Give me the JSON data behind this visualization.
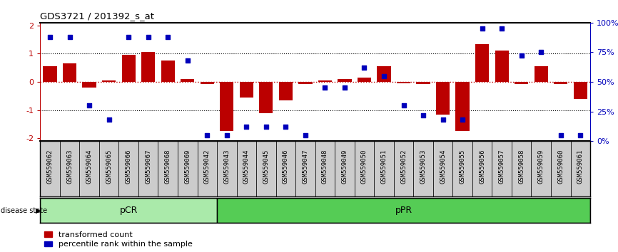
{
  "title": "GDS3721 / 201392_s_at",
  "samples": [
    "GSM559062",
    "GSM559063",
    "GSM559064",
    "GSM559065",
    "GSM559066",
    "GSM559067",
    "GSM559068",
    "GSM559069",
    "GSM559042",
    "GSM559043",
    "GSM559044",
    "GSM559045",
    "GSM559046",
    "GSM559047",
    "GSM559048",
    "GSM559049",
    "GSM559050",
    "GSM559051",
    "GSM559052",
    "GSM559053",
    "GSM559054",
    "GSM559055",
    "GSM559056",
    "GSM559057",
    "GSM559058",
    "GSM559059",
    "GSM559060",
    "GSM559061"
  ],
  "bar_values": [
    0.55,
    0.65,
    -0.2,
    0.05,
    0.97,
    1.05,
    0.75,
    0.1,
    -0.08,
    -1.75,
    -0.55,
    -1.1,
    -0.65,
    -0.08,
    0.05,
    0.1,
    0.15,
    0.55,
    -0.05,
    -0.08,
    -1.15,
    -1.75,
    1.35,
    1.1,
    -0.08,
    0.55,
    -0.08,
    -0.6
  ],
  "percentile_values": [
    88,
    88,
    30,
    18,
    88,
    88,
    88,
    68,
    5,
    5,
    12,
    12,
    12,
    5,
    45,
    45,
    62,
    55,
    30,
    22,
    18,
    18,
    95,
    95,
    72,
    75,
    5,
    5
  ],
  "pcr_count": 9,
  "ppr_count": 19,
  "ylim": [
    -2.1,
    2.1
  ],
  "right_ylim": [
    0,
    100
  ],
  "bar_color": "#bb0000",
  "dot_color": "#0000bb",
  "pcr_color": "#aaeaaa",
  "ppr_color": "#55cc55",
  "axis_left_color": "#bb0000",
  "axis_right_color": "#0000bb",
  "legend_labels": [
    "transformed count",
    "percentile rank within the sample"
  ],
  "group_label": "disease state",
  "right_ytick_labels": [
    "0%",
    "25%",
    "50%",
    "75%",
    "100%"
  ],
  "right_ytick_values": [
    0,
    25,
    50,
    75,
    100
  ],
  "left_ytick_labels": [
    "-2",
    "-1",
    "0",
    "1",
    "2"
  ],
  "left_ytick_values": [
    -2,
    -1,
    0,
    1,
    2
  ]
}
